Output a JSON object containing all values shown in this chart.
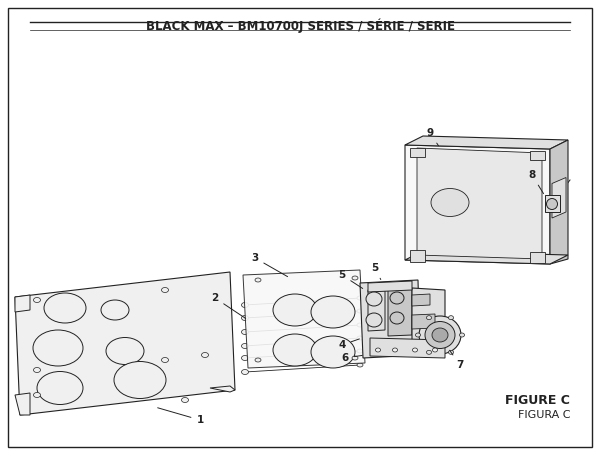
{
  "title": "BLACK MAX – BM10700J SERIES / SÉRIE / SERIE",
  "figure_label": "FIGURE C",
  "figura_label": "FIGURA C",
  "bg_color": "#ffffff",
  "border_color": "#222222",
  "line_color": "#222222",
  "fill_light": "#f0f0f0",
  "fill_mid": "#e0e0e0",
  "fill_dark": "#c8c8c8",
  "title_fontsize": 8.5,
  "label_fontsize": 7.5
}
